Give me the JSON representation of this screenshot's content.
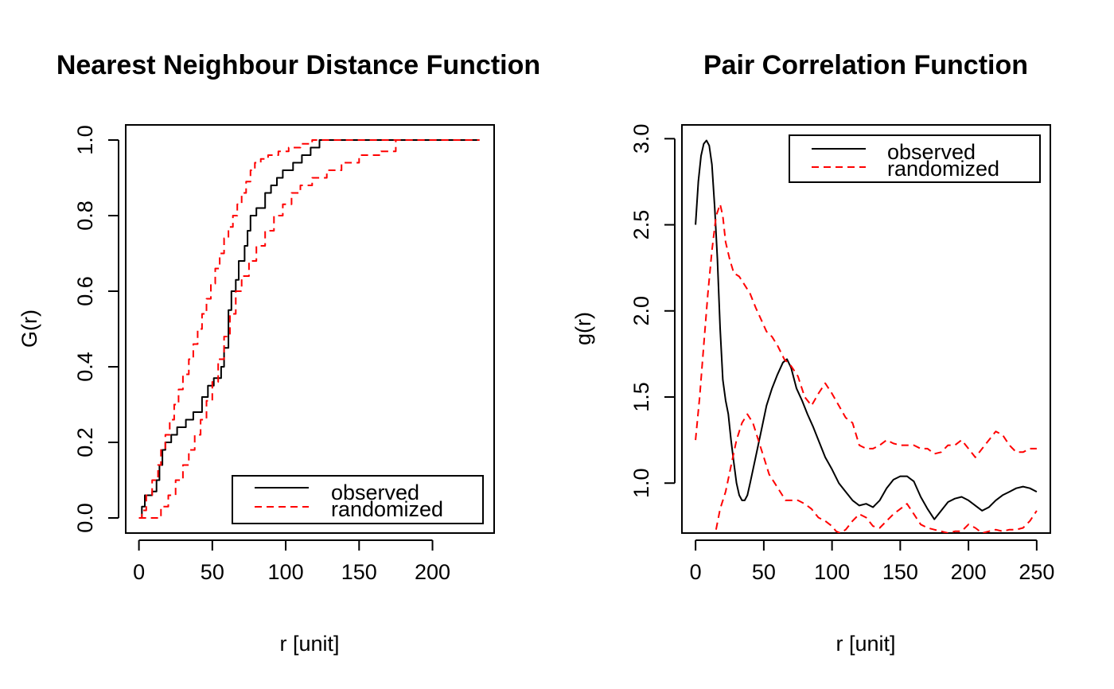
{
  "chart_data": [
    {
      "type": "line",
      "title": "Nearest Neighbour Distance Function",
      "xlabel": "r [unit]",
      "ylabel": "G(r)",
      "xlim": [
        -9,
        242
      ],
      "ylim": [
        -0.04,
        1.04
      ],
      "xticks": [
        0,
        50,
        100,
        150,
        200
      ],
      "yticks": [
        0.0,
        0.2,
        0.4,
        0.6,
        0.8,
        1.0
      ],
      "xtick_labels": [
        "0",
        "50",
        "100",
        "150",
        "200"
      ],
      "ytick_labels": [
        "0.0",
        "0.2",
        "0.4",
        "0.6",
        "0.8",
        "1.0"
      ],
      "step": true,
      "legend": {
        "position": "bottom-right",
        "entries": [
          "observed",
          "randomized"
        ]
      },
      "series": [
        {
          "name": "observed",
          "color": "#000000",
          "dash": "solid",
          "x": [
            0,
            2,
            4,
            9,
            12,
            14,
            16,
            18,
            22,
            26,
            32,
            37,
            43,
            47,
            51,
            56,
            58,
            61,
            63,
            66,
            68,
            72,
            74,
            76,
            80,
            86,
            90,
            94,
            98,
            105,
            111,
            117,
            123,
            232
          ],
          "y": [
            0,
            0.03,
            0.06,
            0.07,
            0.1,
            0.14,
            0.18,
            0.2,
            0.22,
            0.24,
            0.26,
            0.28,
            0.32,
            0.35,
            0.37,
            0.4,
            0.45,
            0.55,
            0.6,
            0.63,
            0.68,
            0.72,
            0.76,
            0.8,
            0.82,
            0.86,
            0.88,
            0.9,
            0.92,
            0.94,
            0.96,
            0.98,
            1.0,
            1.0
          ]
        },
        {
          "name": "randomized upper",
          "color": "#ff0000",
          "dash": "dashed",
          "x": [
            0,
            2,
            5,
            9,
            13,
            15,
            18,
            21,
            24,
            27,
            30,
            34,
            37,
            40,
            43,
            46,
            49,
            52,
            55,
            58,
            61,
            64,
            67,
            70,
            73,
            76,
            79,
            83,
            88,
            95,
            102,
            110,
            118,
            125,
            232
          ],
          "y": [
            0,
            0.02,
            0.06,
            0.1,
            0.14,
            0.18,
            0.22,
            0.26,
            0.3,
            0.34,
            0.38,
            0.42,
            0.46,
            0.5,
            0.54,
            0.58,
            0.62,
            0.66,
            0.7,
            0.74,
            0.77,
            0.8,
            0.83,
            0.86,
            0.89,
            0.92,
            0.94,
            0.95,
            0.96,
            0.97,
            0.98,
            0.99,
            1.0,
            1.0,
            1.0
          ]
        },
        {
          "name": "randomized lower",
          "color": "#ff0000",
          "dash": "dashed",
          "x": [
            0,
            12,
            15,
            20,
            25,
            30,
            34,
            38,
            42,
            46,
            50,
            54,
            58,
            62,
            66,
            70,
            75,
            80,
            86,
            92,
            98,
            104,
            110,
            118,
            128,
            138,
            150,
            165,
            175,
            232
          ],
          "y": [
            0,
            0,
            0.03,
            0.06,
            0.1,
            0.14,
            0.18,
            0.22,
            0.26,
            0.31,
            0.36,
            0.42,
            0.48,
            0.54,
            0.6,
            0.64,
            0.68,
            0.72,
            0.76,
            0.8,
            0.83,
            0.86,
            0.88,
            0.9,
            0.92,
            0.94,
            0.96,
            0.97,
            1.0,
            1.0
          ]
        }
      ]
    },
    {
      "type": "line",
      "title": "Pair Correlation Function",
      "xlabel": "r [unit]",
      "ylabel": "g(r)",
      "xlim": [
        -10,
        260
      ],
      "ylim": [
        0.71,
        3.08
      ],
      "xticks": [
        0,
        50,
        100,
        150,
        200,
        250
      ],
      "yticks": [
        1.0,
        1.5,
        2.0,
        2.5,
        3.0
      ],
      "xtick_labels": [
        "0",
        "50",
        "100",
        "150",
        "200",
        "250"
      ],
      "ytick_labels": [
        "1.0",
        "1.5",
        "2.0",
        "2.5",
        "3.0"
      ],
      "step": false,
      "legend": {
        "position": "top-right",
        "entries": [
          "observed",
          "randomized"
        ]
      },
      "series": [
        {
          "name": "observed",
          "color": "#000000",
          "dash": "solid",
          "x": [
            0,
            2,
            4,
            6,
            8,
            10,
            12,
            14,
            16,
            18,
            20,
            22,
            24,
            26,
            28,
            30,
            32,
            34,
            36,
            38,
            40,
            44,
            48,
            52,
            56,
            60,
            64,
            67,
            70,
            74,
            78,
            82,
            86,
            90,
            95,
            100,
            105,
            110,
            115,
            120,
            125,
            130,
            135,
            140,
            145,
            150,
            155,
            160,
            165,
            170,
            175,
            180,
            185,
            190,
            195,
            200,
            205,
            210,
            215,
            220,
            225,
            230,
            235,
            240,
            245,
            250
          ],
          "y": [
            2.5,
            2.75,
            2.9,
            2.97,
            2.99,
            2.96,
            2.85,
            2.6,
            2.3,
            1.9,
            1.6,
            1.48,
            1.4,
            1.25,
            1.12,
            1.0,
            0.93,
            0.9,
            0.9,
            0.93,
            1.0,
            1.15,
            1.3,
            1.45,
            1.55,
            1.63,
            1.7,
            1.72,
            1.67,
            1.55,
            1.48,
            1.4,
            1.33,
            1.25,
            1.15,
            1.08,
            1.0,
            0.95,
            0.9,
            0.87,
            0.88,
            0.86,
            0.9,
            0.97,
            1.02,
            1.04,
            1.04,
            1.01,
            0.92,
            0.85,
            0.79,
            0.84,
            0.89,
            0.91,
            0.92,
            0.9,
            0.87,
            0.84,
            0.86,
            0.9,
            0.93,
            0.95,
            0.97,
            0.98,
            0.97,
            0.95
          ]
        },
        {
          "name": "randomized upper",
          "color": "#ff0000",
          "dash": "dashed",
          "x": [
            0,
            3,
            6,
            9,
            12,
            15,
            18,
            20,
            22,
            25,
            28,
            32,
            36,
            40,
            44,
            48,
            52,
            56,
            60,
            65,
            70,
            75,
            80,
            85,
            90,
            95,
            100,
            105,
            110,
            115,
            120,
            125,
            130,
            135,
            140,
            145,
            150,
            155,
            160,
            165,
            170,
            175,
            180,
            185,
            190,
            195,
            200,
            205,
            210,
            215,
            220,
            225,
            230,
            235,
            240,
            245,
            250
          ],
          "y": [
            1.25,
            1.5,
            1.8,
            2.1,
            2.35,
            2.55,
            2.62,
            2.55,
            2.4,
            2.3,
            2.22,
            2.2,
            2.15,
            2.1,
            2.02,
            1.95,
            1.88,
            1.85,
            1.8,
            1.72,
            1.68,
            1.62,
            1.5,
            1.45,
            1.52,
            1.58,
            1.52,
            1.45,
            1.38,
            1.35,
            1.22,
            1.2,
            1.2,
            1.22,
            1.25,
            1.23,
            1.22,
            1.22,
            1.22,
            1.2,
            1.2,
            1.17,
            1.18,
            1.22,
            1.22,
            1.25,
            1.2,
            1.15,
            1.2,
            1.25,
            1.3,
            1.28,
            1.22,
            1.18,
            1.18,
            1.2,
            1.2
          ]
        },
        {
          "name": "randomized lower",
          "color": "#ff0000",
          "dash": "dashed",
          "x": [
            15,
            18,
            22,
            26,
            30,
            34,
            38,
            42,
            46,
            50,
            54,
            58,
            62,
            66,
            70,
            75,
            80,
            85,
            90,
            95,
            100,
            103,
            106,
            110,
            115,
            120,
            125,
            130,
            135,
            140,
            145,
            150,
            155,
            160,
            165,
            170,
            175,
            180,
            185,
            190,
            195,
            200,
            205,
            210,
            215,
            220,
            225,
            230,
            235,
            240,
            245,
            250
          ],
          "y": [
            0.73,
            0.85,
            0.95,
            1.1,
            1.25,
            1.35,
            1.4,
            1.35,
            1.25,
            1.15,
            1.05,
            1.0,
            0.95,
            0.9,
            0.9,
            0.9,
            0.88,
            0.85,
            0.8,
            0.78,
            0.75,
            0.72,
            0.71,
            0.73,
            0.78,
            0.82,
            0.8,
            0.75,
            0.74,
            0.78,
            0.82,
            0.85,
            0.88,
            0.82,
            0.76,
            0.74,
            0.73,
            0.72,
            0.71,
            0.72,
            0.72,
            0.76,
            0.74,
            0.71,
            0.72,
            0.73,
            0.72,
            0.73,
            0.73,
            0.74,
            0.78,
            0.84
          ]
        }
      ]
    }
  ]
}
